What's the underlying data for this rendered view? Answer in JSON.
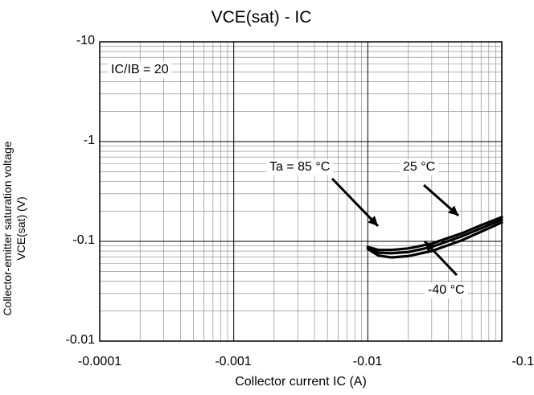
{
  "chart_data": {
    "type": "line",
    "title": "VCE(sat) - IC",
    "xlabel": "Collector current IC (A)",
    "ylabel_lines": [
      "Collector-emitter saturation voltage",
      "VCE(sat) (V)"
    ],
    "x_scale": "log",
    "y_scale": "log",
    "xlim": [
      -0.0001,
      -0.1
    ],
    "ylim": [
      -0.01,
      -10
    ],
    "x_ticks": [
      "-0.0001",
      "-0.001",
      "-0.01",
      "-0.1"
    ],
    "y_ticks": [
      "-10",
      "-1",
      "-0.1",
      "-0.01"
    ],
    "grid": true,
    "condition": "IC/IB = 20",
    "series": [
      {
        "name": "Ta = 85 °C",
        "x": [
          -0.01,
          -0.012,
          -0.015,
          -0.02,
          -0.03,
          -0.05,
          -0.07,
          -0.1
        ],
        "y": [
          -0.088,
          -0.082,
          -0.082,
          -0.085,
          -0.095,
          -0.12,
          -0.145,
          -0.175
        ]
      },
      {
        "name": "25 °C",
        "x": [
          -0.01,
          -0.012,
          -0.015,
          -0.02,
          -0.03,
          -0.05,
          -0.07,
          -0.1
        ],
        "y": [
          -0.086,
          -0.077,
          -0.076,
          -0.078,
          -0.088,
          -0.112,
          -0.135,
          -0.165
        ]
      },
      {
        "name": "-40 °C",
        "x": [
          -0.01,
          -0.012,
          -0.015,
          -0.02,
          -0.03,
          -0.05,
          -0.07,
          -0.1
        ],
        "y": [
          -0.084,
          -0.072,
          -0.069,
          -0.071,
          -0.08,
          -0.102,
          -0.125,
          -0.155
        ]
      }
    ],
    "annotations": {
      "ta85": "Ta = 85 °C",
      "t25": "25 °C",
      "tm40": "-40 °C"
    },
    "colors": {
      "line": "#000000",
      "grid": "#808080",
      "frame": "#000000"
    }
  }
}
